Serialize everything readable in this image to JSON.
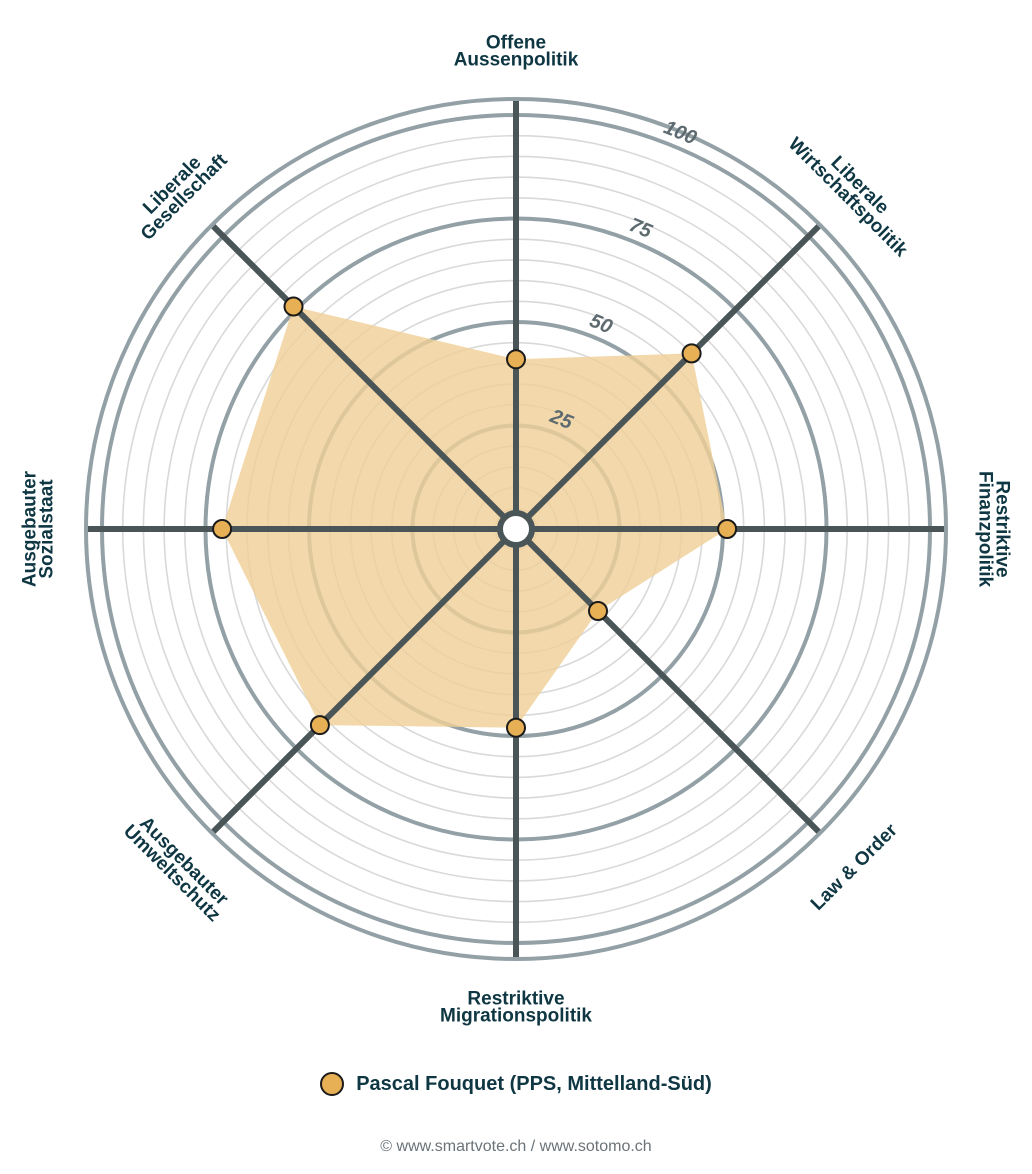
{
  "chart_data": {
    "type": "radar",
    "axes": [
      {
        "label_lines": [
          "Offene",
          "Aussenpolitik"
        ],
        "value": 41
      },
      {
        "label_lines": [
          "Liberale",
          "Wirtschaftspolitik"
        ],
        "value": 60
      },
      {
        "label_lines": [
          "Restriktive",
          "Finanzpolitik"
        ],
        "value": 51
      },
      {
        "label_lines": [
          "Law & Order"
        ],
        "value": 28
      },
      {
        "label_lines": [
          "Restriktive",
          "Migrationspolitik"
        ],
        "value": 48
      },
      {
        "label_lines": [
          "Ausgebauter",
          "Umweltschutz"
        ],
        "value": 67
      },
      {
        "label_lines": [
          "Ausgebauter",
          "Sozialstaat"
        ],
        "value": 71
      },
      {
        "label_lines": [
          "Liberale",
          "Gesellschaft"
        ],
        "value": 76
      }
    ],
    "rlim": [
      0,
      100
    ],
    "major_rings": [
      25,
      50,
      75,
      100
    ],
    "ring_labels": [
      "25",
      "50",
      "75",
      "100"
    ],
    "grid": true,
    "series": [
      {
        "name": "Pascal Fouquet (PPS, Mittelland-Süd)",
        "color": "#e8b055"
      }
    ],
    "legend_position": "bottom"
  },
  "legend": {
    "label": "Pascal Fouquet (PPS, Mittelland-Süd)"
  },
  "footer": {
    "text": "© www.smartvote.ch / www.sotomo.ch"
  },
  "colors": {
    "fill": "#efcf97",
    "marker": "#e8b055",
    "axis": "#4a5558",
    "major_ring": "#93a1a6",
    "minor_ring": "#d9d9d9",
    "text": "#0f3743"
  }
}
